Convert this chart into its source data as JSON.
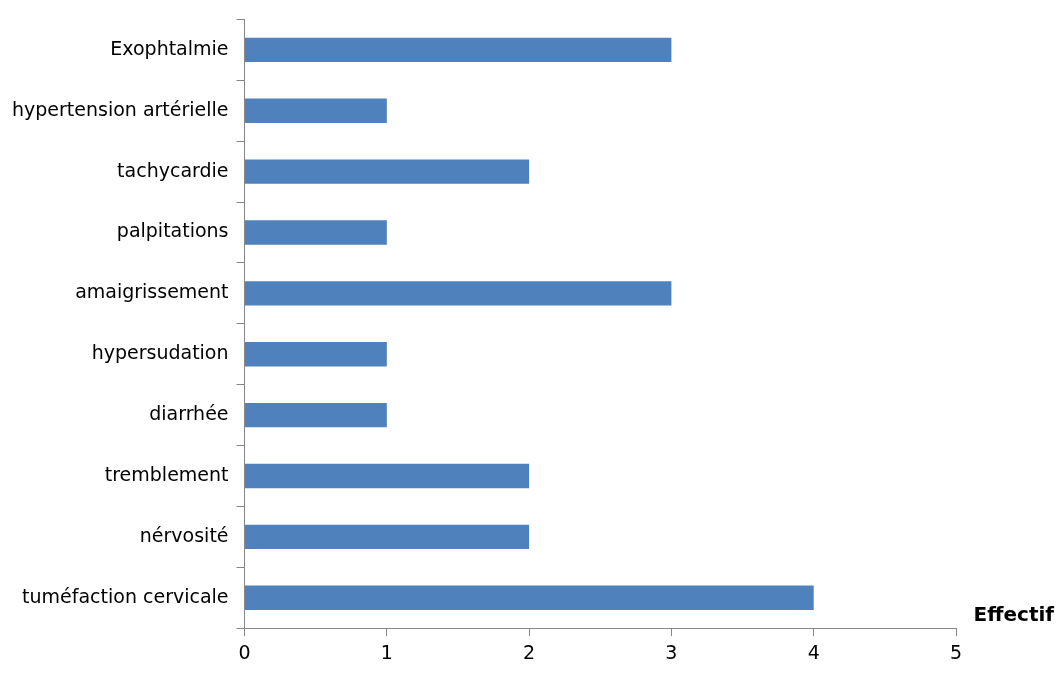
{
  "chart_data": {
    "type": "bar",
    "orientation": "horizontal",
    "xlabel": "Effectif",
    "categories": [
      "Exophtalmie",
      "hypertension artérielle",
      "tachycardie",
      "palpitations",
      "amaigrissement",
      "hypersudation",
      "diarrhée",
      "tremblement",
      "nérvosité",
      "tuméfaction cervicale"
    ],
    "values": [
      3,
      1,
      2,
      1,
      3,
      1,
      1,
      2,
      2,
      4
    ],
    "color": "#4f81bd",
    "xlim": [
      0,
      5
    ],
    "xticks": [
      0,
      1,
      2,
      3,
      4,
      5
    ],
    "grid": false,
    "legend": false
  }
}
